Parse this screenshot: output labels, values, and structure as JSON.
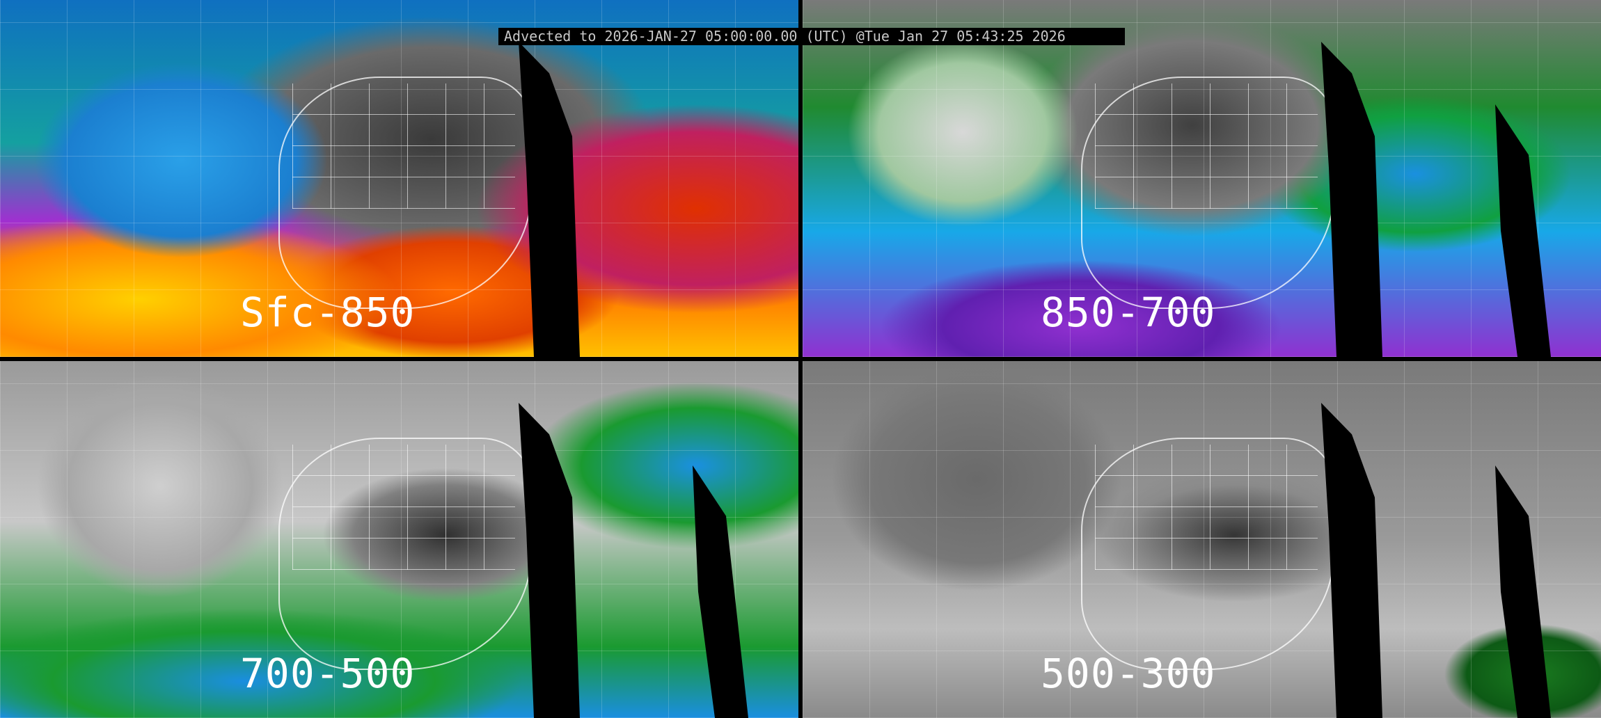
{
  "title": "Advected to 2026-JAN-27 05:00:00.00 (UTC) @Tue Jan 27 05:43:25 2026",
  "panels": [
    {
      "label": "Sfc-850"
    },
    {
      "label": "850-700"
    },
    {
      "label": "700-500"
    },
    {
      "label": "500-300"
    }
  ]
}
